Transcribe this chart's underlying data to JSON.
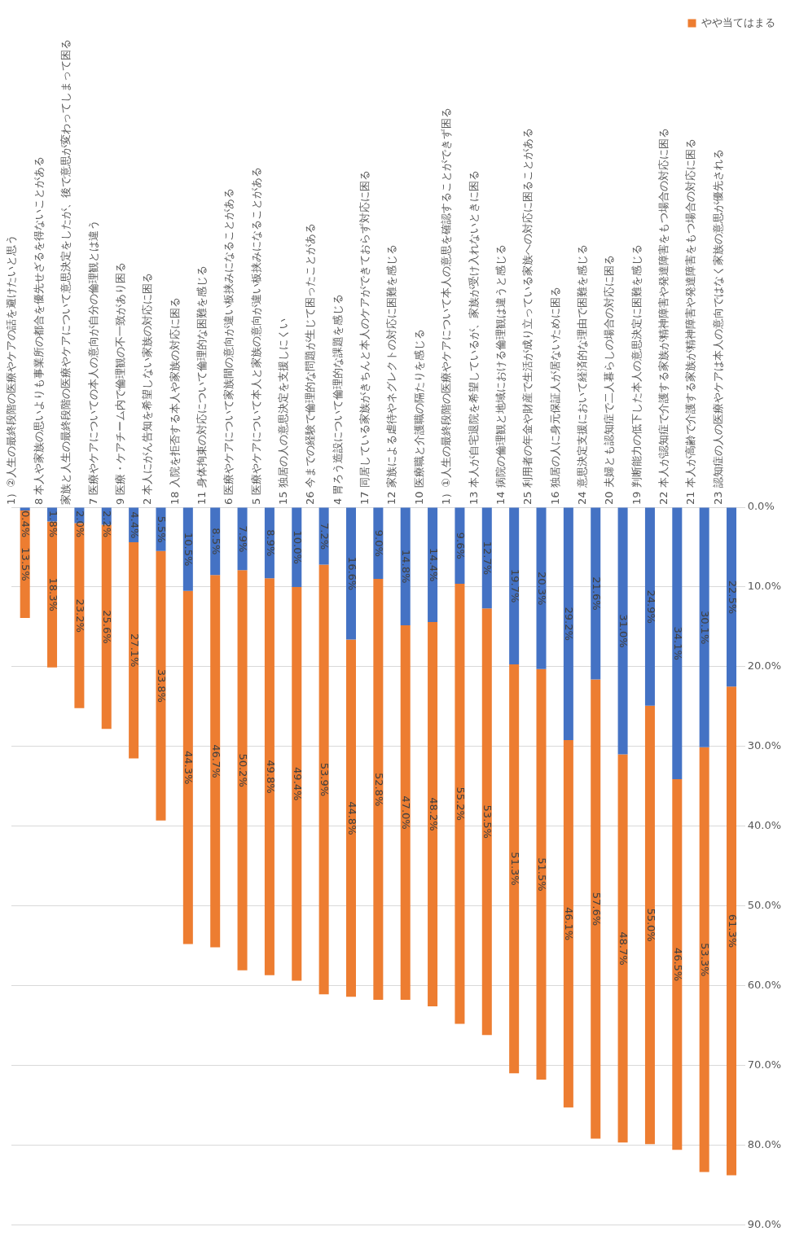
{
  "chart_data": {
    "type": "bar",
    "stacked": true,
    "categories": [
      "1）②人生の最終段階の医療やケアの話を避けたいと思う",
      "8 本人や家族の思いよりも事業所の都合を優先せざるを得ないことがある",
      "家族と人生の最終段階の医療やケアについて意思決定をしたが、後で意思が変わってしまって困る",
      "7 医療やケアについての本人の意向が自分の倫理観とは違う",
      "9 医療・ケアチーム内で倫理観の不一致があり困る",
      "2 本人にがん告知を希望しない家族の対応に困る",
      "18 入院を拒否する本人や家族の対応に困る",
      "11 身体拘束の対応について倫理的な困難を感じる",
      "6 医療やケアについて家族間の意向が違い板挟みになることがある",
      "5 医療やケアについて本人と家族の意向が違い板挟みになることがある",
      "15 独居の人の意思決定を支援しにくい",
      "26 今までの経験で倫理的な問題が生じて困ったことがある",
      "4 胃ろう造設について倫理的な課題を感じる",
      "17 同居している家族がきちんと本人のケアができておらず対応に困る",
      "12 家族による虐待やネグレクトの対応に困難を感じる",
      "10 医療職と介護職の隔たりを感じる",
      "1）①人生の最終段階の医療やケアについて本人の意思を確認することができず困る",
      "13 本人が自宅退院を希望しているが、家族が受け入れないときに困る",
      "14 病院の倫理観と地域における倫理観は違うと感じる",
      "25 利用者の年金や財産で生活が成り立っている家族への対応に困ることがある",
      "16 独居の人に身元保証人が居ないために困る",
      "24 意思決定支援において経済的な理由で困難を感じる",
      "20 夫婦とも認知症で二人暮らしの場合の対応に困る",
      "19 判断能力の低下した本人の意思決定に困難を感じる",
      "22 本人が認知症で介護する家族が精神障害や発達障害をもつ場合の対応に困る",
      "21 本人が高齢で介護する家族が精神障害や発達障害をもつ場合の対応に困る",
      "23 認知症の人の医療やケアは本人の意向ではなく家族の意思が優先される"
    ],
    "series": [
      {
        "color": "#4472c4",
        "values": [
          0.4,
          1.8,
          2.0,
          2.2,
          4.4,
          5.5,
          10.5,
          8.5,
          7.9,
          8.9,
          10.0,
          7.2,
          16.6,
          9.0,
          14.8,
          14.4,
          9.6,
          12.7,
          19.7,
          20.3,
          29.2,
          21.6,
          31.0,
          24.9,
          34.1,
          30.1,
          22.5
        ],
        "value_labels": [
          "0.4%",
          "1.8%",
          "2.0%",
          "2.2%",
          "4.4%",
          "5.5%",
          "10.5%",
          "8.5%",
          "7.9%",
          "8.9%",
          "10.0%",
          "7.2%",
          "16.6%",
          "9.0%",
          "14.8%",
          "14.4%",
          "9.6%",
          "12.7%",
          "19.7%",
          "20.3%",
          "29.2%",
          "21.6%",
          "31.0%",
          "24.9%",
          "34.1%",
          "30.1%",
          "22.5%"
        ]
      },
      {
        "name": "やや当てはまる",
        "color": "#ed7d31",
        "values": [
          13.5,
          18.3,
          23.2,
          25.6,
          27.1,
          33.8,
          44.3,
          46.7,
          50.2,
          49.8,
          49.4,
          53.9,
          44.8,
          52.8,
          47.0,
          48.2,
          55.2,
          53.5,
          51.3,
          51.5,
          46.1,
          57.6,
          48.7,
          55.0,
          46.5,
          53.3,
          61.3
        ],
        "value_labels": [
          "13.5%",
          "18.3%",
          "23.2%",
          "25.6%",
          "27.1%",
          "33.8%",
          "44.3%",
          "46.7%",
          "50.2%",
          "49.8%",
          "49.4%",
          "53.9%",
          "44.8%",
          "52.8%",
          "47.0%",
          "48.2%",
          "55.2%",
          "53.5%",
          "51.3%",
          "51.5%",
          "46.1%",
          "57.6%",
          "48.7%",
          "55.0%",
          "46.5%",
          "53.3%",
          "61.3%"
        ]
      }
    ],
    "ylim": [
      90,
      0
    ],
    "yticks": [
      {
        "value": 0,
        "label": "0.0%"
      },
      {
        "value": 10,
        "label": "10.0%"
      },
      {
        "value": 20,
        "label": "20.0%"
      },
      {
        "value": 30,
        "label": "30.0%"
      },
      {
        "value": 40,
        "label": "40.0%"
      },
      {
        "value": 50,
        "label": "50.0%"
      },
      {
        "value": 60,
        "label": "60.0%"
      },
      {
        "value": 70,
        "label": "70.0%"
      },
      {
        "value": 80,
        "label": "80.0%"
      },
      {
        "value": 90,
        "label": "90.0%"
      }
    ],
    "grid": "y",
    "legend": "top right"
  }
}
